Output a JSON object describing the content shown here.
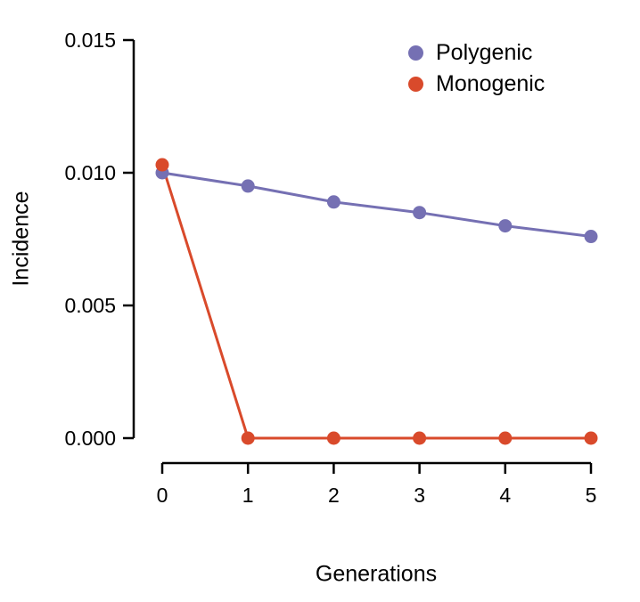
{
  "chart_data": {
    "type": "line",
    "title": "",
    "xlabel": "Generations",
    "ylabel": "Incidence",
    "x": [
      0,
      1,
      2,
      3,
      4,
      5
    ],
    "xlim": [
      0,
      5
    ],
    "ylim": [
      0,
      0.015
    ],
    "yticks": [
      0,
      0.005,
      0.01,
      0.015
    ],
    "ytick_labels": [
      "0.000",
      "0.005",
      "0.010",
      "0.015"
    ],
    "xtick_labels": [
      "0",
      "1",
      "2",
      "3",
      "4",
      "5"
    ],
    "grid": false,
    "legend_position": "top-right",
    "axis_color": "#000000",
    "series": [
      {
        "name": "Polygenic",
        "color": "#7570B3",
        "values": [
          0.01,
          0.0095,
          0.0089,
          0.0085,
          0.008,
          0.0076
        ]
      },
      {
        "name": "Monogenic",
        "color": "#D94A2B",
        "values": [
          0.0103,
          0.0,
          0.0,
          0.0,
          0.0,
          0.0
        ]
      }
    ]
  }
}
